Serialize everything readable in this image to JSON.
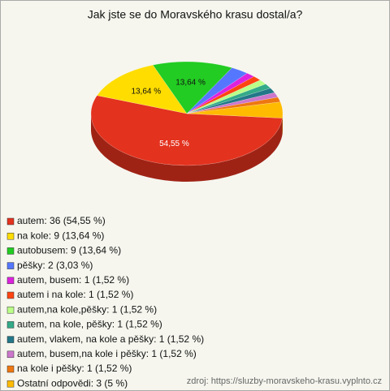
{
  "chart_data": {
    "type": "pie",
    "title": "Jak jste se do Moravského krasu dostal/a?",
    "categories": [
      "autem: 36 (54,55 %)",
      "na kole: 9 (13,64 %)",
      "autobusem: 9 (13,64 %)",
      "pěšky: 2 (3,03 %)",
      "autem, busem: 1 (1,52 %)",
      "autem i na kole: 1 (1,52 %)",
      "autem,na kole,pěšky: 1 (1,52 %)",
      "autem, na kole, pěšky: 1 (1,52 %)",
      "autem, vlakem, na kole a pěšky: 1 (1,52 %)",
      "autem, busem,na kole i pěšky: 1 (1,52 %)",
      "na kole i pěšky: 1 (1,52 %)",
      "Ostatní odpovědi: 3 (5 %)"
    ],
    "values": [
      54.55,
      13.64,
      13.64,
      3.03,
      1.52,
      1.52,
      1.52,
      1.52,
      1.52,
      1.52,
      1.52,
      5
    ],
    "value_labels": [
      "54,55 %",
      "13,64 %",
      "13,64 %",
      null,
      null,
      null,
      null,
      null,
      null,
      null,
      null,
      null
    ],
    "colors": [
      "#e3321e",
      "#ffdd00",
      "#22cc22",
      "#5577ff",
      "#dd22dd",
      "#ff4411",
      "#bbff88",
      "#33aa88",
      "#227788",
      "#cc77cc",
      "#ee7711",
      "#ffbb00"
    ],
    "source": "zdroj: https://sluzby-moravskeho-krasu.vyplnto.cz"
  }
}
